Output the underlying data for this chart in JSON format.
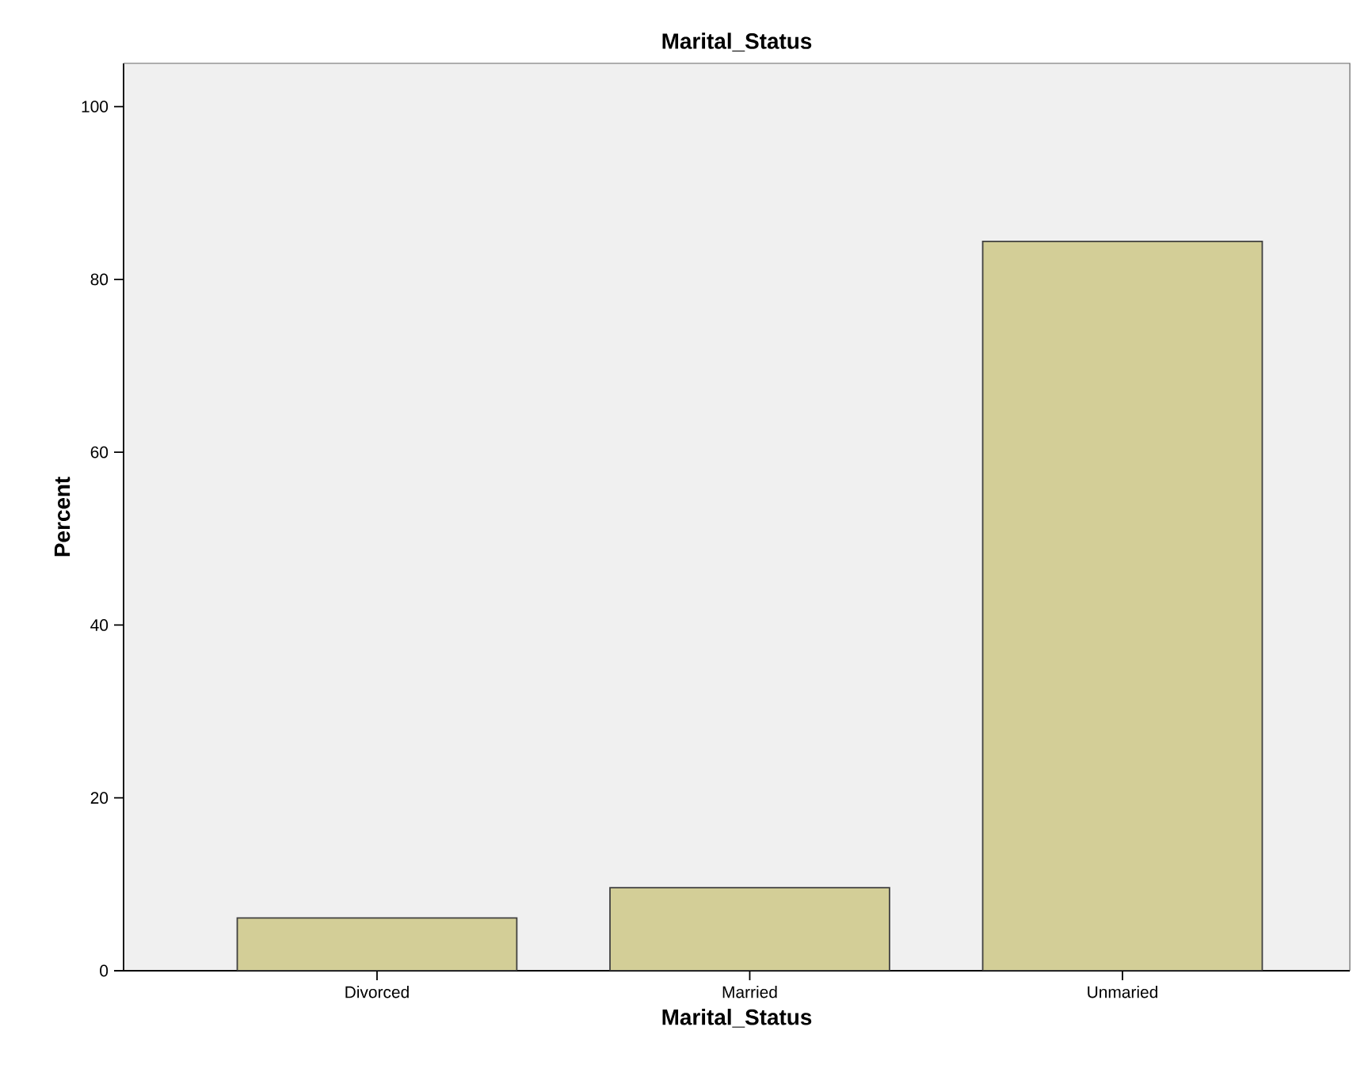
{
  "chart_data": {
    "type": "bar",
    "title": "Marital_Status",
    "xlabel": "Marital_Status",
    "ylabel": "Percent",
    "categories": [
      "Divorced",
      "Married",
      "Unmaried"
    ],
    "values": [
      6.1,
      9.6,
      84.4
    ],
    "color": "#d3ce97",
    "ylim": [
      0,
      105
    ],
    "yticks": [
      0,
      20,
      40,
      60,
      80,
      100
    ]
  }
}
